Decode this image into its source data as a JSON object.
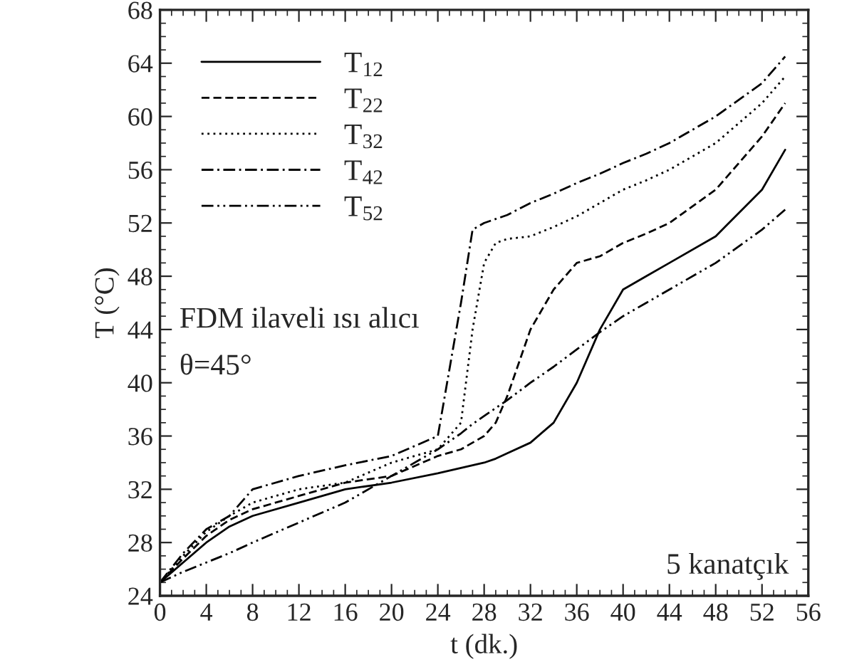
{
  "chart_data": {
    "type": "line",
    "xlabel": "t (dk.)",
    "ylabel": "T (°C)",
    "xlim": [
      0,
      56
    ],
    "ylim": [
      24,
      68
    ],
    "xticks": [
      0,
      4,
      8,
      12,
      16,
      20,
      24,
      28,
      32,
      36,
      40,
      44,
      48,
      52,
      56
    ],
    "yticks": [
      24,
      28,
      32,
      36,
      40,
      44,
      48,
      52,
      56,
      60,
      64,
      68
    ],
    "grid": false,
    "legend": "top left",
    "marker": "none",
    "x": [
      0,
      2,
      4,
      6,
      8,
      12,
      16,
      20,
      24,
      26,
      27,
      28,
      29,
      30,
      32,
      34,
      36,
      38,
      40,
      42,
      44,
      48,
      52,
      54
    ],
    "series": [
      {
        "name": "T$_{12}$",
        "color": "#000000",
        "line_style": "solid",
        "values": [
          25,
          26.5,
          28,
          29.2,
          30,
          31,
          32,
          32.5,
          33.2,
          33.6,
          33.8,
          34,
          34.3,
          34.7,
          35.5,
          37,
          40,
          44,
          47,
          48,
          49,
          51,
          54.5,
          57.5
        ]
      },
      {
        "name": "T$_{22}$",
        "color": "#000000",
        "line_style": "dashed",
        "values": [
          25,
          26.8,
          28.5,
          29.7,
          30.5,
          31.5,
          32.5,
          33,
          34.5,
          35,
          35.5,
          36,
          37,
          39,
          44,
          47,
          49,
          49.5,
          50.5,
          51.2,
          52,
          54.5,
          58.5,
          61
        ]
      },
      {
        "name": "T$_{32}$",
        "color": "#000000",
        "line_style": "dotted",
        "values": [
          25,
          27,
          28.8,
          30,
          31,
          32,
          32.5,
          34,
          35,
          37,
          44,
          49,
          50.5,
          50.8,
          51,
          51.7,
          52.5,
          53.5,
          54.5,
          55.2,
          56,
          58,
          61,
          63
        ]
      },
      {
        "name": "T$_{42}$",
        "color": "#000000",
        "line_style": "dashdot",
        "values": [
          25,
          27.2,
          29,
          30,
          32,
          33,
          33.8,
          34.5,
          36,
          46,
          51.5,
          52,
          52.3,
          52.6,
          53.5,
          54.2,
          55,
          55.7,
          56.5,
          57.2,
          58,
          60,
          62.5,
          64.5
        ]
      },
      {
        "name": "T$_{52}$",
        "color": "#000000",
        "line_style": "dashdotdot",
        "values": [
          25,
          25.8,
          26.5,
          27.2,
          28,
          29.5,
          31,
          33,
          35,
          36.2,
          36.9,
          37.5,
          38.1,
          38.7,
          40,
          41.2,
          42.5,
          43.8,
          45,
          46,
          47,
          49,
          51.5,
          53
        ]
      }
    ],
    "annotations": [
      "FDM ilaveli ısı alıcı",
      "θ=45°",
      "5 kanatçık"
    ]
  }
}
